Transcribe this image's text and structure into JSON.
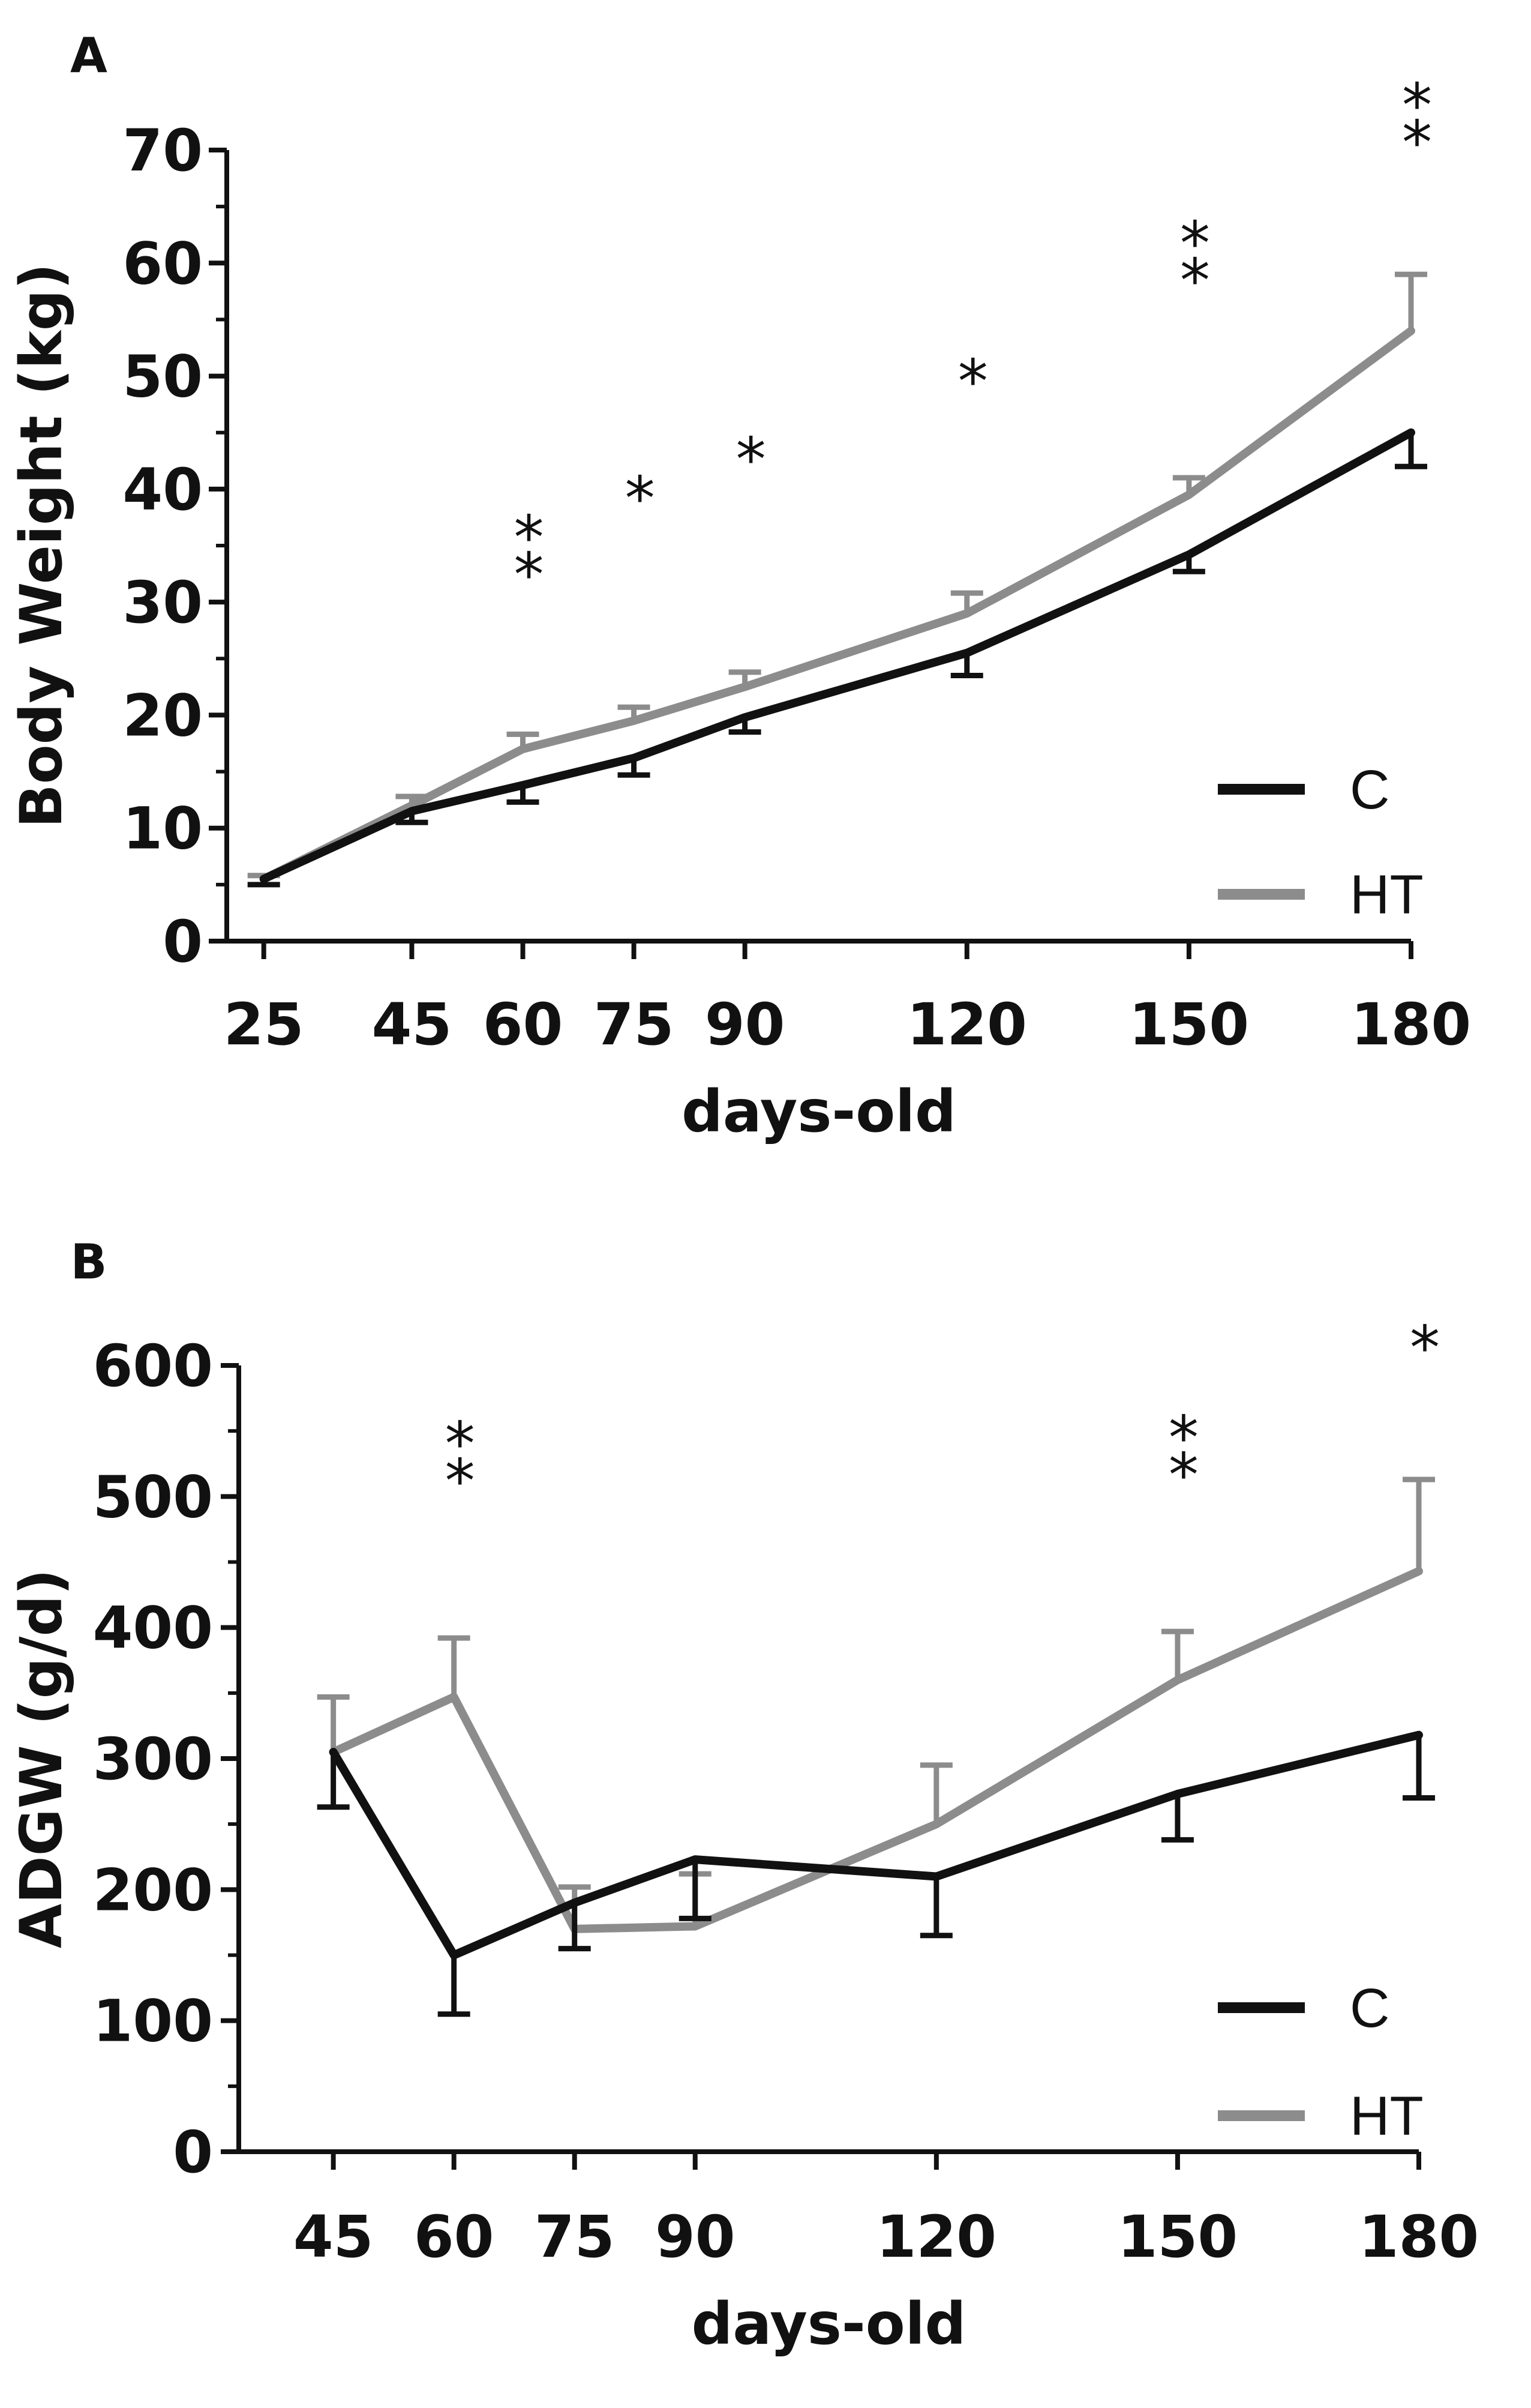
{
  "chart_data": [
    {
      "panel_label": "A",
      "type": "line",
      "xlabel": "days-old",
      "ylabel": "Body Weight (kg)",
      "x": [
        25,
        45,
        60,
        75,
        90,
        120,
        150,
        180
      ],
      "x_ticks": [
        "25",
        "45",
        "60",
        "75",
        "90",
        "120",
        "150",
        "180"
      ],
      "y_ticks": [
        "0",
        "10",
        "20",
        "30",
        "40",
        "50",
        "60",
        "70"
      ],
      "xlim": [
        20,
        180
      ],
      "ylim": [
        0,
        70
      ],
      "series": [
        {
          "name": "C",
          "color": "#111111",
          "values": [
            5.5,
            11.5,
            13.8,
            16.2,
            19.8,
            25.5,
            34.2,
            45.0
          ],
          "error": [
            0.5,
            1.0,
            1.5,
            1.5,
            1.3,
            2.0,
            1.5,
            3.0
          ],
          "error_direction": "down"
        },
        {
          "name": "HT",
          "color": "#8c8c8c",
          "values": [
            5.5,
            12.0,
            17.0,
            19.5,
            22.5,
            29.0,
            39.5,
            54.0
          ],
          "error": [
            0.3,
            0.8,
            1.3,
            1.2,
            1.3,
            1.8,
            1.5,
            5.0
          ],
          "error_direction": "up"
        }
      ],
      "significance": [
        {
          "x": 60,
          "label": "**"
        },
        {
          "x": 75,
          "label": "*"
        },
        {
          "x": 90,
          "label": "*"
        },
        {
          "x": 120,
          "label": "*"
        },
        {
          "x": 150,
          "label": "**"
        },
        {
          "x": 180,
          "label": "**"
        }
      ],
      "legend_position": "bottom-right"
    },
    {
      "panel_label": "B",
      "type": "line",
      "xlabel": "days-old",
      "ylabel": "ADGW (g/d)",
      "x": [
        45,
        60,
        75,
        90,
        120,
        150,
        180
      ],
      "x_ticks": [
        "45",
        "60",
        "75",
        "90",
        "120",
        "150",
        "180"
      ],
      "y_ticks": [
        "0",
        "100",
        "200",
        "300",
        "400",
        "500",
        "600"
      ],
      "xlim": [
        36,
        180
      ],
      "ylim": [
        0,
        600
      ],
      "series": [
        {
          "name": "C",
          "color": "#111111",
          "values": [
            305,
            150,
            190,
            223,
            210,
            273,
            318
          ],
          "error": [
            42,
            45,
            35,
            45,
            45,
            35,
            48
          ],
          "error_direction": "down"
        },
        {
          "name": "HT",
          "color": "#8c8c8c",
          "values": [
            305,
            347,
            170,
            172,
            250,
            360,
            443
          ],
          "error": [
            42,
            45,
            32,
            40,
            45,
            37,
            70
          ],
          "error_direction": "up"
        }
      ],
      "significance": [
        {
          "x": 60,
          "label": "**"
        },
        {
          "x": 150,
          "label": "**"
        },
        {
          "x": 180,
          "label": "*"
        }
      ],
      "legend_position": "bottom-right"
    }
  ]
}
